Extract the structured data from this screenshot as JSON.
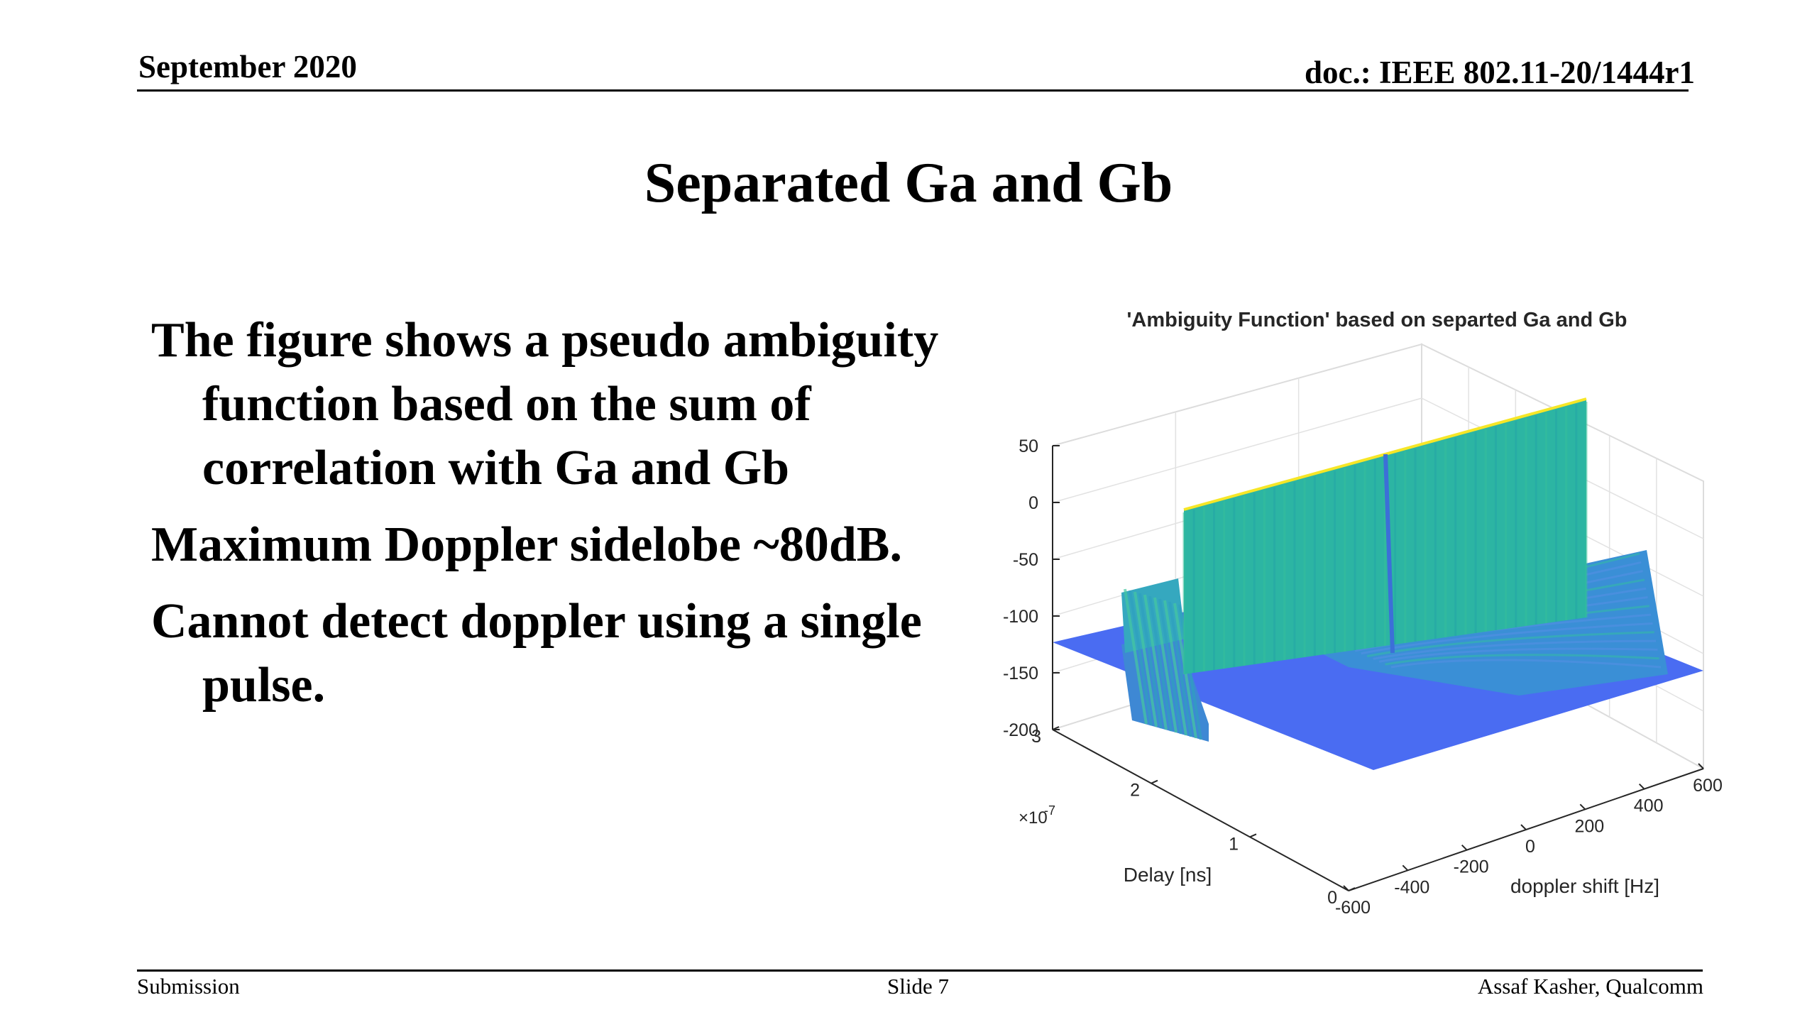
{
  "header": {
    "date": "September 2020",
    "doc_id": "doc.: IEEE 802.11-20/1444r1"
  },
  "slide": {
    "title": "Separated Ga and Gb",
    "bullets": [
      "The figure shows a pseudo ambiguity function based on the sum of correlation with Ga and Gb",
      "Maximum Doppler sidelobe ~80dB.",
      "Cannot detect doppler using a single pulse."
    ]
  },
  "footer": {
    "left": "Submission",
    "center": "Slide 7",
    "right": "Assaf Kasher, Qualcomm"
  },
  "chart_data": {
    "type": "surface3d",
    "title": "'Ambiguity Function' based on separted Ga and Gb",
    "xlabel": "doppler shift [Hz]",
    "ylabel": "Delay [ns]",
    "zlabel": "",
    "x_ticks": [
      "-600",
      "-400",
      "-200",
      "0",
      "200",
      "400",
      "600"
    ],
    "y_ticks": [
      "0",
      "1",
      "2",
      "3"
    ],
    "y_exponent": "×10",
    "y_exponent_power": "-7",
    "z_ticks": [
      "50",
      "0",
      "-50",
      "-100",
      "-150",
      "-200"
    ],
    "xlim": [
      -600,
      600
    ],
    "ylim": [
      0,
      3e-07
    ],
    "zlim": [
      -200,
      50
    ],
    "floor_level_db": -125,
    "main_ridge_delay": 1.5e-07,
    "main_ridge_peak_db": 50,
    "max_doppler_sidelobe_db": -80,
    "colors": {
      "floor": "#4a6cf2",
      "ridge": "#2cb5a3",
      "ridge_top": "#f6e627",
      "sidelobe": "#3a8fd6"
    }
  }
}
